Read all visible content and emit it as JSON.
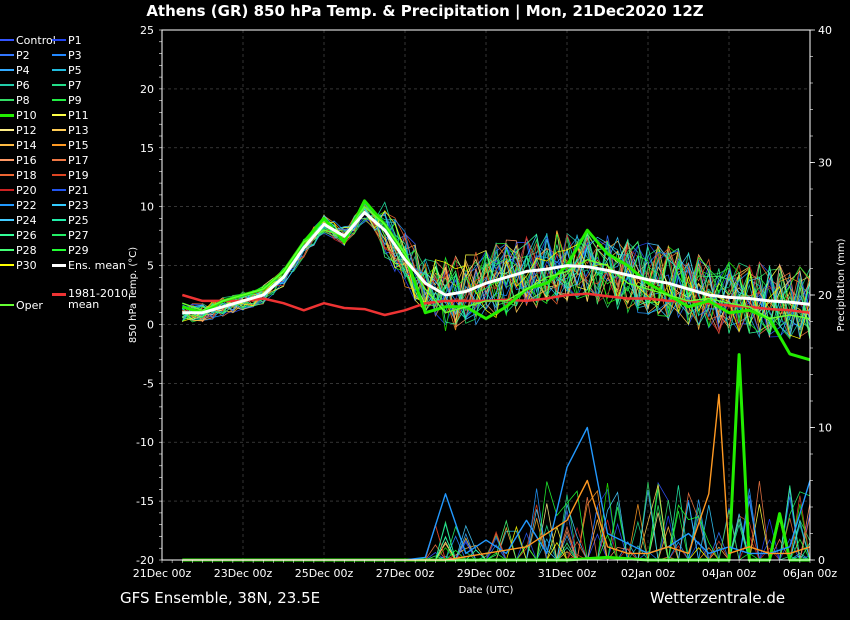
{
  "title": "Athens  (GR)  850 hPa Temp. & Precipitation | Mon, 21Dec2020 12Z",
  "footer_left": "GFS Ensemble, 38N, 23.5E",
  "footer_right": "Wetterzentrale.de",
  "legend": [
    {
      "label": "Control",
      "color": "#3355ff"
    },
    {
      "label": "P1",
      "color": "#2244ee"
    },
    {
      "label": "P2",
      "color": "#3377ff"
    },
    {
      "label": "P3",
      "color": "#2288ff"
    },
    {
      "label": "P4",
      "color": "#33aaff"
    },
    {
      "label": "P5",
      "color": "#22bbdd"
    },
    {
      "label": "P6",
      "color": "#22ccaa"
    },
    {
      "label": "P7",
      "color": "#22dd88"
    },
    {
      "label": "P8",
      "color": "#33dd66"
    },
    {
      "label": "P9",
      "color": "#22ee44"
    },
    {
      "label": "P10",
      "color": "#22ee00",
      "thick": true
    },
    {
      "label": "P11",
      "color": "#ffff44"
    },
    {
      "label": "P12",
      "color": "#ffee88"
    },
    {
      "label": "P13",
      "color": "#ffcc55"
    },
    {
      "label": "P14",
      "color": "#ffbb44"
    },
    {
      "label": "P15",
      "color": "#ff9922"
    },
    {
      "label": "P16",
      "color": "#ff9966"
    },
    {
      "label": "P17",
      "color": "#ee7744"
    },
    {
      "label": "P18",
      "color": "#ee6633"
    },
    {
      "label": "P19",
      "color": "#dd4422"
    },
    {
      "label": "P20",
      "color": "#cc2222"
    },
    {
      "label": "P21",
      "color": "#2255ee"
    },
    {
      "label": "P22",
      "color": "#2299ff"
    },
    {
      "label": "P23",
      "color": "#33ccff"
    },
    {
      "label": "P24",
      "color": "#44ccff"
    },
    {
      "label": "P25",
      "color": "#22eeaa"
    },
    {
      "label": "P26",
      "color": "#33ff99"
    },
    {
      "label": "P27",
      "color": "#22ee66"
    },
    {
      "label": "P28",
      "color": "#44ff77"
    },
    {
      "label": "P29",
      "color": "#22ff33"
    },
    {
      "label": "P30",
      "color": "#ffff00"
    },
    {
      "label": "Ens. mean",
      "color": "#ffffff",
      "thick": true
    },
    {
      "label": "Oper",
      "color": "#66ff33"
    },
    {
      "label": "1981-2010 mean",
      "color": "#ee3333",
      "thick": true
    }
  ],
  "chart_data": {
    "type": "line",
    "x_start": "21Dec2020 00z",
    "x_ticks": [
      "21Dec 00z",
      "23Dec 00z",
      "25Dec 00z",
      "27Dec 00z",
      "29Dec 00z",
      "31Dec 00z",
      "02Jan 00z",
      "04Jan 00z",
      "06Jan 00z"
    ],
    "xlabel": "Date (UTC)",
    "ylabel": "850 hPa Temp. (°C)",
    "ylim": [
      -20,
      25
    ],
    "y_ticks": [
      25,
      20,
      15,
      10,
      5,
      0,
      -5,
      -10,
      -15,
      -20
    ],
    "y2label": "Precipitation (mm)",
    "y2lim": [
      0,
      40
    ],
    "y2_ticks": [
      40,
      30,
      20,
      10,
      0
    ],
    "grid": true,
    "legend_position": "left",
    "series": [
      {
        "name": "Ens. mean",
        "unit": "°C",
        "x": [
          0.5,
          1,
          1.5,
          2,
          2.5,
          3,
          3.5,
          4,
          4.5,
          5,
          5.5,
          6,
          6.5,
          7,
          7.5,
          8,
          8.5,
          9,
          9.5,
          10,
          10.5,
          11,
          11.5,
          12,
          12.5,
          13,
          13.5,
          14,
          14.5,
          15,
          15.5,
          16
        ],
        "values": [
          1,
          1,
          1.5,
          2,
          2.5,
          4,
          6.5,
          8.5,
          7.5,
          9.5,
          8,
          5.5,
          3.5,
          2.5,
          2.8,
          3.5,
          4,
          4.5,
          4.7,
          5,
          4.9,
          4.6,
          4.2,
          3.8,
          3.5,
          3,
          2.5,
          2.3,
          2.2,
          2,
          1.9,
          1.7
        ]
      },
      {
        "name": "1981-2010 mean",
        "unit": "°C",
        "x": [
          0.5,
          1,
          1.5,
          2,
          2.5,
          3,
          3.5,
          4,
          4.5,
          5,
          5.5,
          6,
          6.5,
          7,
          7.5,
          8,
          8.5,
          9,
          9.5,
          10,
          10.5,
          11,
          11.5,
          12,
          12.5,
          13,
          13.5,
          14,
          14.5,
          15,
          15.5,
          16
        ],
        "values": [
          2.5,
          2,
          2,
          2,
          2.2,
          1.8,
          1.2,
          1.8,
          1.4,
          1.3,
          0.8,
          1.2,
          1.8,
          2,
          2,
          2,
          2.1,
          2,
          2.2,
          2.5,
          2.6,
          2.4,
          2.2,
          2.2,
          2,
          2,
          1.8,
          1.6,
          1.5,
          1.3,
          1.2,
          1
        ]
      },
      {
        "name": "P10",
        "unit": "°C",
        "x": [
          0.5,
          1,
          1.5,
          2,
          2.5,
          3,
          3.5,
          4,
          4.5,
          5,
          5.5,
          6,
          6.5,
          7,
          7.5,
          8,
          8.5,
          9,
          9.5,
          10,
          10.5,
          11,
          11.5,
          12,
          12.5,
          13,
          13.5,
          14,
          14.5,
          15,
          15.5,
          16
        ],
        "values": [
          1.5,
          1,
          2,
          2.5,
          3,
          4.5,
          7,
          9,
          7,
          10.5,
          8.5,
          6,
          1,
          1.5,
          1.5,
          0.5,
          1.5,
          3,
          3.5,
          5,
          8,
          6,
          5,
          3.5,
          2.5,
          1.5,
          2,
          1,
          1.2,
          0.5,
          -2.5,
          -3
        ]
      },
      {
        "name": "Oper",
        "unit": "°C",
        "x": [
          0.5,
          1,
          1.5,
          2,
          2.5,
          3,
          3.5,
          4,
          4.5,
          5,
          5.5,
          6,
          6.5,
          7,
          7.5,
          8,
          8.5,
          9,
          9.5,
          10,
          10.5,
          11,
          11.5,
          12,
          12.5,
          13,
          13.5,
          14,
          14.5,
          15,
          15.5,
          16
        ],
        "values": [
          1.8,
          1.2,
          2,
          2.5,
          3,
          4.5,
          7,
          8,
          7.5,
          10,
          8.5,
          6,
          3,
          1,
          1.5,
          2,
          2,
          3,
          4,
          4.5,
          5.5,
          5,
          3.5,
          3,
          2.5,
          2,
          2.2,
          1.8,
          1.5,
          0.5,
          0.8,
          0.5
        ]
      },
      {
        "name": "P10 precip",
        "unit": "mm",
        "x": [
          0.5,
          1,
          2,
          3,
          4,
          5,
          6,
          7,
          8,
          9,
          10,
          11,
          12,
          12.5,
          13,
          13.5,
          14,
          14.25,
          14.5,
          15,
          15.25,
          15.5,
          16
        ],
        "values": [
          0,
          0,
          0,
          0,
          0,
          0,
          0,
          0,
          0,
          0,
          0,
          0.2,
          0,
          0,
          0,
          0,
          0,
          15.5,
          0,
          0,
          3.5,
          0,
          0
        ]
      },
      {
        "name": "P22 precip",
        "unit": "mm",
        "x": [
          0.5,
          1,
          2,
          3,
          4,
          5,
          6,
          6.5,
          7,
          7.5,
          8,
          8.5,
          9,
          9.5,
          10,
          10.5,
          11,
          12,
          12.5,
          13,
          13.5,
          14,
          14.5,
          15,
          15.5,
          16
        ],
        "values": [
          0,
          0,
          0,
          0,
          0,
          0,
          0,
          0.2,
          5,
          0.5,
          1.5,
          0.5,
          3,
          0.5,
          7,
          10,
          2,
          0.5,
          1,
          2,
          0.5,
          1,
          0.5,
          0.5,
          1,
          6
        ]
      },
      {
        "name": "P15 precip",
        "unit": "mm",
        "x": [
          0.5,
          1,
          2,
          3,
          4,
          5,
          6,
          7,
          8,
          9,
          10,
          10.5,
          11,
          11.5,
          12,
          12.5,
          13,
          13.5,
          13.75,
          14,
          14.5,
          15,
          15.5,
          16
        ],
        "values": [
          0,
          0,
          0,
          0,
          0,
          0,
          0,
          0,
          0.5,
          1,
          3,
          6,
          1,
          0.5,
          0.5,
          1,
          0.5,
          5,
          12.5,
          0.5,
          1,
          0.5,
          0.5,
          1
        ]
      }
    ]
  }
}
